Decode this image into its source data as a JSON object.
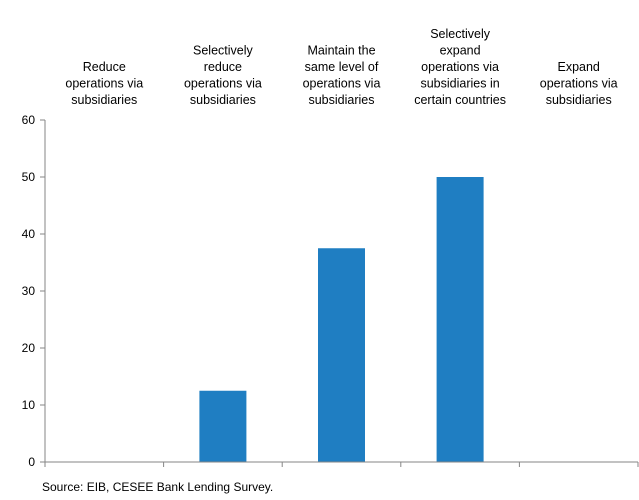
{
  "chart_data": {
    "type": "bar",
    "categories": [
      [
        "Reduce",
        "operations via",
        "subsidiaries"
      ],
      [
        "Selectively",
        "reduce",
        "operations via",
        "subsidiaries"
      ],
      [
        "Maintain the",
        "same level of",
        "operations via",
        "subsidiaries"
      ],
      [
        "Selectively",
        "expand",
        "operations via",
        "subsidiaries in",
        "certain countries"
      ],
      [
        "Expand",
        "operations via",
        "subsidiaries"
      ]
    ],
    "values": [
      0,
      12.5,
      37.5,
      50,
      0
    ],
    "ylim": [
      0,
      60
    ],
    "yticks": [
      "0",
      "10",
      "20",
      "30",
      "40",
      "50",
      "60"
    ],
    "grid": false,
    "bar_color": "#1f7ec2"
  },
  "source": "Source: EIB, CESEE Bank Lending  Survey."
}
